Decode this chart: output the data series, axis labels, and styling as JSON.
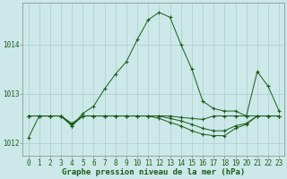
{
  "title": "Graphe pression niveau de la mer (hPa)",
  "background_color": "#cce8e8",
  "plot_bg_color": "#cce8e8",
  "grid_color": "#aacfcf",
  "line_color": "#1a5c1a",
  "xlim": [
    -0.5,
    23.5
  ],
  "ylim": [
    1011.75,
    1014.85
  ],
  "yticks": [
    1012,
    1013,
    1014
  ],
  "xticks": [
    0,
    1,
    2,
    3,
    4,
    5,
    6,
    7,
    8,
    9,
    10,
    11,
    12,
    13,
    14,
    15,
    16,
    17,
    18,
    19,
    20,
    21,
    22,
    23
  ],
  "series": [
    {
      "x": [
        0,
        1,
        2,
        3,
        4,
        5,
        6,
        7,
        8,
        9,
        10,
        11,
        12,
        13,
        14,
        15,
        16,
        17,
        18,
        19,
        20,
        21,
        22,
        23
      ],
      "y": [
        1012.1,
        1012.55,
        1012.55,
        1012.55,
        1012.35,
        1012.6,
        1012.75,
        1013.1,
        1013.4,
        1013.65,
        1014.1,
        1014.5,
        1014.65,
        1014.55,
        1014.0,
        1013.5,
        1012.85,
        1012.7,
        1012.65,
        1012.65,
        1012.55,
        1013.45,
        1013.15,
        1012.65
      ]
    },
    {
      "x": [
        0,
        1,
        2,
        3,
        4,
        5,
        6,
        7,
        8,
        9,
        10,
        11,
        12,
        13,
        14,
        15,
        16,
        17,
        18,
        19,
        20,
        21,
        22,
        23
      ],
      "y": [
        1012.55,
        1012.55,
        1012.55,
        1012.55,
        1012.4,
        1012.55,
        1012.55,
        1012.55,
        1012.55,
        1012.55,
        1012.55,
        1012.55,
        1012.55,
        1012.55,
        1012.52,
        1012.5,
        1012.48,
        1012.55,
        1012.55,
        1012.55,
        1012.55,
        1012.55,
        1012.55,
        1012.55
      ]
    },
    {
      "x": [
        0,
        1,
        2,
        3,
        4,
        5,
        6,
        7,
        8,
        9,
        10,
        11,
        12,
        13,
        14,
        15,
        16,
        17,
        18,
        19,
        20,
        21,
        22,
        23
      ],
      "y": [
        1012.55,
        1012.55,
        1012.55,
        1012.55,
        1012.38,
        1012.55,
        1012.55,
        1012.55,
        1012.55,
        1012.55,
        1012.55,
        1012.55,
        1012.55,
        1012.5,
        1012.45,
        1012.38,
        1012.3,
        1012.25,
        1012.25,
        1012.35,
        1012.4,
        1012.55,
        1012.55,
        1012.55
      ]
    },
    {
      "x": [
        0,
        1,
        2,
        3,
        4,
        5,
        6,
        7,
        8,
        9,
        10,
        11,
        12,
        13,
        14,
        15,
        16,
        17,
        18,
        19,
        20,
        21,
        22,
        23
      ],
      "y": [
        1012.55,
        1012.55,
        1012.55,
        1012.55,
        1012.35,
        1012.55,
        1012.55,
        1012.55,
        1012.55,
        1012.55,
        1012.55,
        1012.55,
        1012.5,
        1012.42,
        1012.35,
        1012.25,
        1012.18,
        1012.15,
        1012.15,
        1012.3,
        1012.38,
        1012.55,
        1012.55,
        1012.55
      ]
    }
  ],
  "tick_fontsize": 5.5,
  "title_fontsize": 6.5,
  "linewidth": 0.7,
  "markersize": 3.0
}
